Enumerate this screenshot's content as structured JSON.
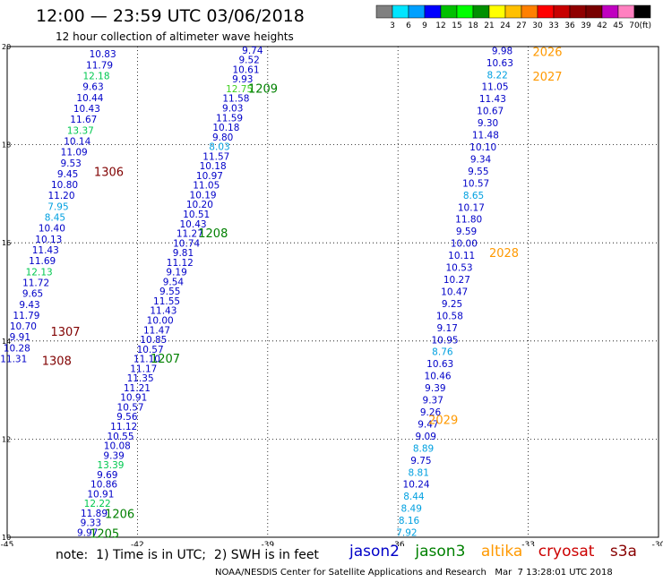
{
  "header": {
    "title": "12:00 — 23:59 UTC 03/06/2018",
    "subtitle": "12 hour collection of altimeter wave heights"
  },
  "colorbar": {
    "colors": [
      "#808080",
      "#00e5ff",
      "#00a0ff",
      "#0000ff",
      "#00c000",
      "#00ff00",
      "#009000",
      "#ffff00",
      "#ffc000",
      "#ff8000",
      "#ff0000",
      "#c80000",
      "#900000",
      "#780000",
      "#c000c0",
      "#ff80c0",
      "#000000"
    ],
    "labels": [
      "3",
      "6",
      "9",
      "12",
      "15",
      "18",
      "21",
      "24",
      "27",
      "30",
      "33",
      "36",
      "39",
      "42",
      "45",
      "70"
    ],
    "unit": "(ft)"
  },
  "note": "note:  1) Time is in UTC;  2) SWH is in feet",
  "credit": "NOAA/NESDIS Center for Satellite Applications and Research   Mar  7 13:28:01 UTC 2018",
  "satellites": [
    {
      "name": "jason2",
      "color": "#0000c8"
    },
    {
      "name": "jason3",
      "color": "#008000"
    },
    {
      "name": "altika",
      "color": "#ff9900"
    },
    {
      "name": "cryosat",
      "color": "#cc0000"
    },
    {
      "name": "s3a",
      "color": "#880000"
    }
  ],
  "chart_data": {
    "type": "scatter",
    "xlim": [
      -45,
      -30
    ],
    "ylim": [
      10,
      20
    ],
    "xticks": [
      "-45",
      "-42",
      "-39",
      "-36",
      "-33",
      "-30"
    ],
    "yticks": [
      "10",
      "12",
      "14",
      "16",
      "18",
      "20"
    ],
    "grid": true,
    "colors": {
      "jason2": "#0000c8",
      "jason3": "#008000",
      "altika": "#ff9900",
      "cryosat": "#cc0000",
      "s3a": "#800000",
      "c9": "#00a0e0",
      "c12": "#00c850",
      "c15": "#40d020"
    },
    "track_labels": [
      {
        "text": "1209",
        "x": -39.45,
        "y": 19.15,
        "color": "jason3"
      },
      {
        "text": "1208",
        "x": -40.6,
        "y": 16.2,
        "color": "jason3"
      },
      {
        "text": "1207",
        "x": -41.7,
        "y": 13.65,
        "color": "jason3"
      },
      {
        "text": "1206",
        "x": -42.75,
        "y": 10.48,
        "color": "jason3"
      },
      {
        "text": "1205",
        "x": -43.1,
        "y": 10.08,
        "color": "jason3"
      },
      {
        "text": "1306",
        "x": -43.0,
        "y": 17.45,
        "color": "s3a"
      },
      {
        "text": "1307",
        "x": -44.0,
        "y": 14.2,
        "color": "s3a"
      },
      {
        "text": "1308",
        "x": -44.2,
        "y": 13.6,
        "color": "s3a"
      },
      {
        "text": "2026",
        "x": -32.9,
        "y": 19.9,
        "color": "altika"
      },
      {
        "text": "2027",
        "x": -32.9,
        "y": 19.4,
        "color": "altika"
      },
      {
        "text": "2028",
        "x": -33.9,
        "y": 15.8,
        "color": "altika"
      },
      {
        "text": "2029",
        "x": -35.3,
        "y": 12.4,
        "color": "altika"
      }
    ],
    "tracks": [
      {
        "start": [
          -42.8,
          19.85
        ],
        "end": [
          -44.85,
          13.64
        ],
        "values": [
          "10.83",
          "11.79",
          "12.18",
          "9.63",
          "10.44",
          "10.43",
          "11.67",
          "13.37",
          "10.14",
          "11.09",
          "9.53",
          "9.45",
          "10.80",
          "11.20",
          "7.95",
          "8.45",
          "10.40",
          "10.13",
          "11.43",
          "11.69",
          "12.13",
          "11.72",
          "9.65",
          "9.43",
          "11.79",
          "10.70",
          "9.91",
          "10.28",
          "11.31"
        ],
        "colors": [
          "jason2",
          "jason2",
          "c12",
          "jason2",
          "jason2",
          "jason2",
          "jason2",
          "c12",
          "jason2",
          "jason2",
          "jason2",
          "jason2",
          "jason2",
          "jason2",
          "c9",
          "c9",
          "jason2",
          "jason2",
          "jason2",
          "jason2",
          "c12",
          "jason2",
          "jason2",
          "jason2",
          "jason2",
          "jason2",
          "jason2",
          "jason2",
          "jason2"
        ]
      },
      {
        "start": [
          -39.35,
          19.93
        ],
        "end": [
          -43.15,
          10.1
        ],
        "values": [
          "9.74",
          "9.52",
          "10.61",
          "9.93",
          "12.75",
          "11.58",
          "9.03",
          "11.59",
          "10.18",
          "9.80",
          "8.03",
          "11.57",
          "10.18",
          "10.97",
          "11.05",
          "10.19",
          "10.20",
          "10.51",
          "10.43",
          "11.27",
          "10.74",
          "9.81",
          "11.12",
          "9.19",
          "9.54",
          "9.55",
          "11.55",
          "11.43",
          "10.00",
          "11.47",
          "10.85",
          "10.57",
          "11.10",
          "11.17",
          "11.35",
          "11.21",
          "10.91",
          "10.57",
          "9.56",
          "11.12",
          "10.55",
          "10.08",
          "9.39",
          "13.39",
          "9.69",
          "10.86",
          "10.91",
          "12.22",
          "11.89",
          "9.33",
          "9.97"
        ],
        "colors": [
          "jason2",
          "jason2",
          "jason2",
          "jason2",
          "c15",
          "jason2",
          "jason2",
          "jason2",
          "jason2",
          "jason2",
          "c9",
          "jason2",
          "jason2",
          "jason2",
          "jason2",
          "jason2",
          "jason2",
          "jason2",
          "jason2",
          "jason2",
          "jason2",
          "jason2",
          "jason2",
          "jason2",
          "jason2",
          "jason2",
          "jason2",
          "jason2",
          "jason2",
          "jason2",
          "jason2",
          "jason2",
          "jason2",
          "jason2",
          "jason2",
          "jason2",
          "jason2",
          "jason2",
          "jason2",
          "jason2",
          "jason2",
          "jason2",
          "jason2",
          "c12",
          "jason2",
          "jason2",
          "jason2",
          "c12",
          "jason2",
          "jason2",
          "jason2"
        ]
      },
      {
        "start": [
          -33.6,
          19.92
        ],
        "end": [
          -35.8,
          10.1
        ],
        "values": [
          "9.98",
          "10.63",
          "8.22",
          "11.05",
          "11.43",
          "10.67",
          "9.30",
          "11.48",
          "10.10",
          "9.34",
          "9.55",
          "10.57",
          "8.65",
          "10.17",
          "11.80",
          "9.59",
          "10.00",
          "10.11",
          "10.53",
          "10.27",
          "10.47",
          "9.25",
          "10.58",
          "9.17",
          "10.95",
          "8.76",
          "10.63",
          "10.46",
          "9.39",
          "9.37",
          "9.26",
          "9.47",
          "9.09",
          "8.89",
          "9.75",
          "8.81",
          "10.24",
          "8.44",
          "8.49",
          "8.16",
          "7.92"
        ],
        "colors": [
          "jason2",
          "jason2",
          "c9",
          "jason2",
          "jason2",
          "jason2",
          "jason2",
          "jason2",
          "jason2",
          "jason2",
          "jason2",
          "jason2",
          "c9",
          "jason2",
          "jason2",
          "jason2",
          "jason2",
          "jason2",
          "jason2",
          "jason2",
          "jason2",
          "jason2",
          "jason2",
          "jason2",
          "jason2",
          "c9",
          "jason2",
          "jason2",
          "jason2",
          "jason2",
          "jason2",
          "jason2",
          "jason2",
          "c9",
          "jason2",
          "c9",
          "jason2",
          "c9",
          "c9",
          "c9",
          "c9"
        ]
      }
    ]
  }
}
